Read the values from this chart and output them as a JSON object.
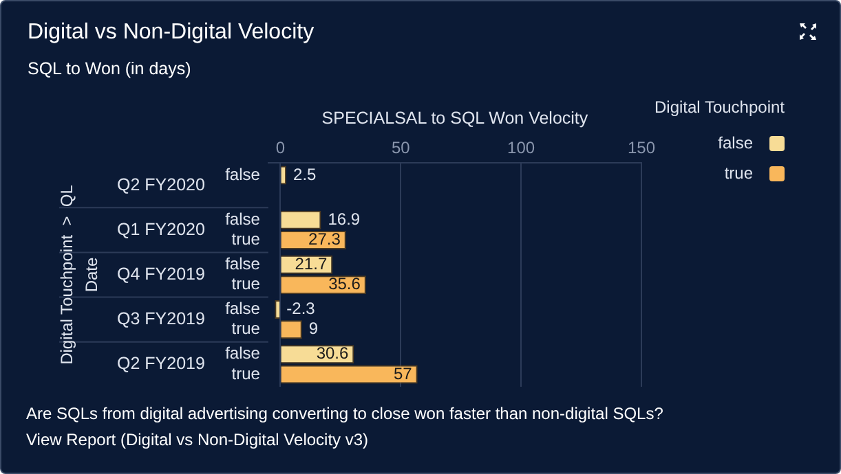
{
  "chart_data": {
    "type": "bar",
    "orientation": "horizontal",
    "title": "Digital vs Non-Digital Velocity",
    "subtitle": "SQL to Won (in days)",
    "xlabel": "SPECIALSAL to SQL Won Velocity",
    "legend_title": "Digital Touchpoint",
    "categories": [
      "Q2 FY2020",
      "Q1 FY2020",
      "Q4 FY2019",
      "Q3 FY2019",
      "Q2 FY2019"
    ],
    "series": [
      {
        "name": "false",
        "color": "#f7dc96",
        "values": [
          2.5,
          16.9,
          21.7,
          -2.3,
          30.6
        ]
      },
      {
        "name": "true",
        "color": "#f9b75b",
        "values": [
          null,
          27.3,
          35.6,
          9,
          57
        ]
      }
    ],
    "xlim": [
      -5,
      150
    ],
    "xticks": [
      0,
      50,
      100,
      150
    ],
    "grid": "x",
    "legend": "top right",
    "data_labels": true,
    "annotations": [
      "Digital Touchpoint  >  QL",
      "Date",
      "Are SQLs from digital advertising converting to close won faster than non-digital SQLs?",
      "View Report (Digital vs Non-Digital Velocity v3)"
    ]
  }
}
